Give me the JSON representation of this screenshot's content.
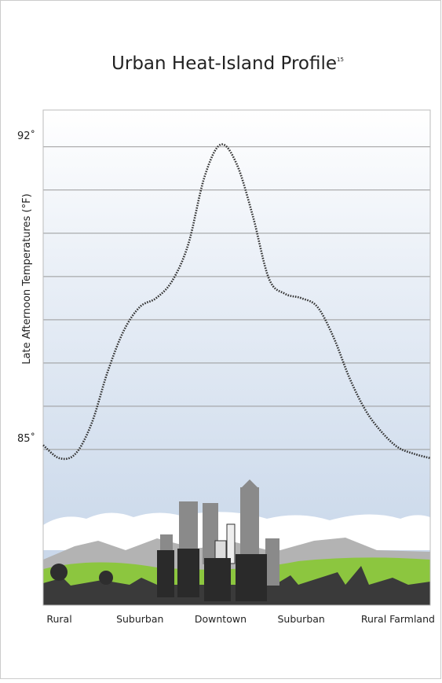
{
  "chart_data": {
    "type": "line",
    "title": "Urban Heat-Island Profile",
    "title_note": "15",
    "y_label": "Late Afternoon Temperatures (°F)",
    "categories": [
      null,
      "Rural",
      null,
      null,
      null,
      null,
      "Suburban",
      null,
      null,
      null,
      null,
      "Downtown",
      null,
      null,
      null,
      null,
      "Suburban",
      null,
      null,
      null,
      null,
      null,
      "Rural Farmland",
      null,
      null
    ],
    "values": [
      85.1,
      84.8,
      84.9,
      85.6,
      86.8,
      87.75,
      88.3,
      88.5,
      88.9,
      89.75,
      91.3,
      92.05,
      91.6,
      90.4,
      88.95,
      88.6,
      88.5,
      88.3,
      87.6,
      86.65,
      85.9,
      85.4,
      85.05,
      84.9,
      84.8
    ],
    "color": "#333333",
    "ylim": [
      81.4,
      92.85
    ],
    "yticks": [
      {
        "value": 85,
        "label": "85˚"
      },
      {
        "value": 92,
        "label": "92˚"
      }
    ],
    "minor_yticks": [
      86,
      87,
      88,
      89,
      90,
      91
    ],
    "grid": true
  }
}
